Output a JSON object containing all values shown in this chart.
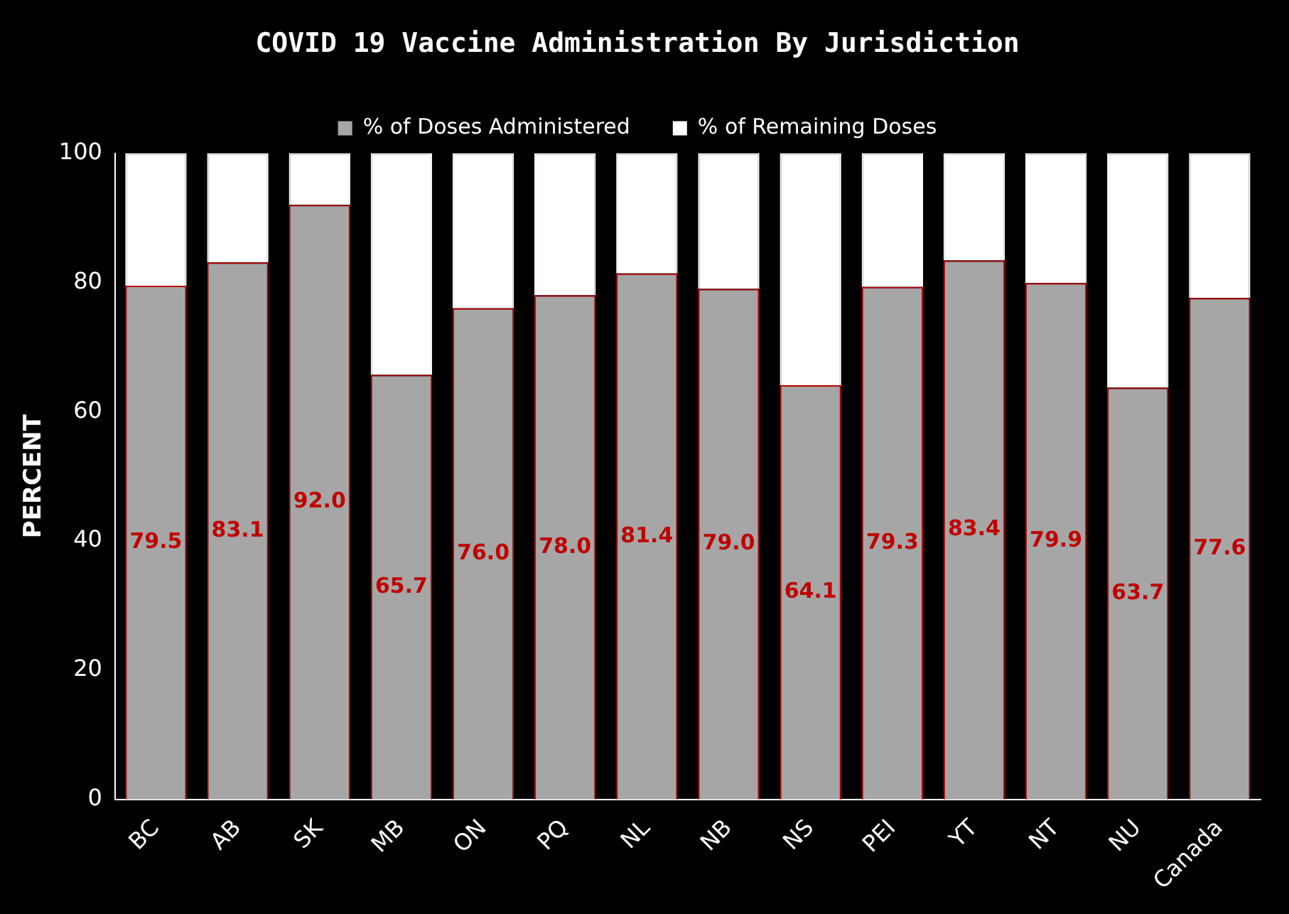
{
  "chart_data": {
    "type": "bar",
    "stacked": true,
    "title": "COVID 19 Vaccine Administration By Jurisdiction",
    "ylabel": "PERCENT",
    "categories": [
      "BC",
      "AB",
      "SK",
      "MB",
      "ON",
      "PQ",
      "NL",
      "NB",
      "NS",
      "PEI",
      "YT",
      "NT",
      "NU",
      "Canada"
    ],
    "series": [
      {
        "name": "% of Doses Administered",
        "color": "#a6a6a6",
        "values": [
          79.5,
          83.1,
          92.0,
          65.7,
          76.0,
          78.0,
          81.4,
          79.0,
          64.1,
          79.3,
          83.4,
          79.9,
          63.7,
          77.6
        ],
        "value_labels": [
          "79.5",
          "83.1",
          "92.0",
          "65.7",
          "76.0",
          "78.0",
          "81.4",
          "79.0",
          "64.1",
          "79.3",
          "83.4",
          "79.9",
          "63.7",
          "77.6"
        ]
      },
      {
        "name": "% of Remaining Doses",
        "color": "#ffffff",
        "values": [
          20.5,
          16.9,
          8.0,
          34.3,
          24.0,
          22.0,
          18.6,
          21.0,
          35.9,
          20.7,
          16.6,
          20.1,
          36.3,
          22.4
        ]
      }
    ],
    "ylim": [
      0,
      100
    ],
    "yticks": [
      0,
      20,
      40,
      60,
      80,
      100
    ],
    "grid": false,
    "legend": "top"
  }
}
